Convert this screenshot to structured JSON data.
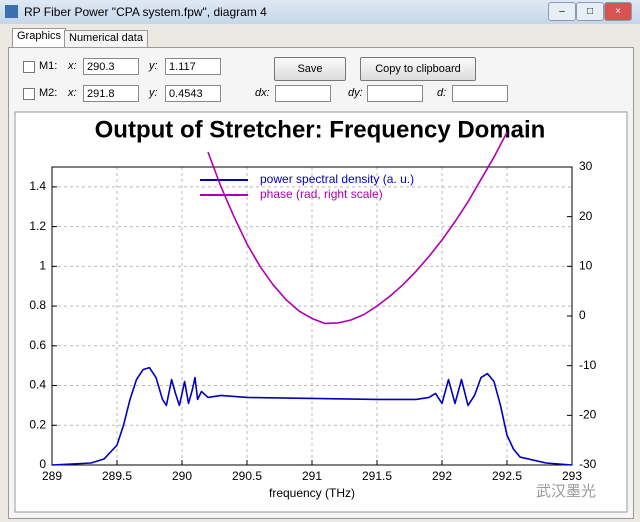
{
  "window": {
    "title": "RP Fiber Power \"CPA system.fpw\", diagram 4"
  },
  "tabs": [
    "Graphics",
    "Numerical data"
  ],
  "markers": {
    "m1": {
      "label": "M1:",
      "x_label": "x:",
      "x": "290.3",
      "y_label": "y:",
      "y": "1.117"
    },
    "m2": {
      "label": "M2:",
      "x_label": "x:",
      "x": "291.8",
      "y_label": "y:",
      "y": "0.4543"
    },
    "dx_label": "dx:",
    "dy_label": "dy:",
    "d_label": "d:"
  },
  "buttons": {
    "save": "Save",
    "copy": "Copy to clipboard"
  },
  "watermark": "武汉墨光",
  "chart_data": {
    "type": "line",
    "title": "Output of Stretcher: Frequency Domain",
    "x_label": "frequency (THz)",
    "xlim": [
      289,
      293
    ],
    "xticks": [
      289,
      289.5,
      290,
      290.5,
      291,
      291.5,
      292,
      292.5,
      293
    ],
    "ylim": [
      0,
      1.5
    ],
    "yticks": [
      0,
      0.2,
      0.4,
      0.6,
      0.8,
      1,
      1.2,
      1.4
    ],
    "y2lim": [
      -30,
      30
    ],
    "y2ticks": [
      -30,
      -20,
      -10,
      0,
      10,
      20,
      30
    ],
    "grid": true,
    "series": [
      {
        "name": "power spectral density (a. u.)",
        "color": "#0000c0",
        "x": [
          289,
          289.3,
          289.4,
          289.5,
          289.55,
          289.6,
          289.65,
          289.7,
          289.75,
          289.8,
          289.85,
          289.88,
          289.92,
          289.95,
          289.98,
          290.02,
          290.05,
          290.08,
          290.1,
          290.12,
          290.15,
          290.2,
          290.3,
          290.5,
          291,
          291.5,
          291.8,
          291.9,
          291.95,
          292,
          292.05,
          292.1,
          292.15,
          292.2,
          292.25,
          292.3,
          292.35,
          292.4,
          292.45,
          292.5,
          292.55,
          292.6,
          292.8,
          293
        ],
        "values": [
          0,
          0.01,
          0.03,
          0.1,
          0.2,
          0.33,
          0.43,
          0.48,
          0.49,
          0.44,
          0.33,
          0.3,
          0.43,
          0.36,
          0.3,
          0.42,
          0.31,
          0.38,
          0.44,
          0.33,
          0.37,
          0.34,
          0.35,
          0.34,
          0.335,
          0.33,
          0.33,
          0.34,
          0.36,
          0.31,
          0.43,
          0.31,
          0.43,
          0.3,
          0.35,
          0.44,
          0.46,
          0.42,
          0.3,
          0.15,
          0.08,
          0.04,
          0.01,
          0
        ]
      },
      {
        "name": "phase (rad, right scale)",
        "color": "#b000b0",
        "axis": "y2",
        "x": [
          290.2,
          290.3,
          290.4,
          290.5,
          290.6,
          290.7,
          290.8,
          290.9,
          291,
          291.1,
          291.2,
          291.3,
          291.4,
          291.5,
          291.6,
          291.7,
          291.8,
          291.9,
          292,
          292.1,
          292.2,
          292.3,
          292.4,
          292.5
        ],
        "values": [
          33,
          26,
          20,
          14.5,
          10,
          6.3,
          3.3,
          1,
          -0.5,
          -1.5,
          -1.4,
          -0.8,
          0.3,
          2,
          4,
          6.3,
          9,
          12,
          15.3,
          19,
          23,
          27.5,
          32,
          37
        ]
      }
    ]
  }
}
